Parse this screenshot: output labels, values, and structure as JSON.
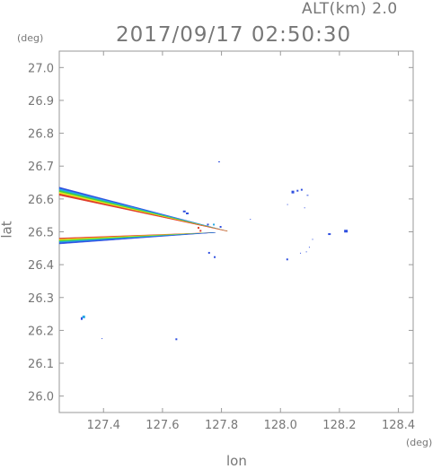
{
  "header": {
    "alt_label": "ALT(km)  2.0",
    "timestamp": "2017/09/17  02:50:30"
  },
  "axes": {
    "y_unit": "(deg)",
    "x_unit": "(deg)",
    "y_label": "lat",
    "x_label": "lon"
  },
  "chart_data": {
    "type": "scatter",
    "title": "2017/09/17  02:50:30",
    "subtitle": "ALT(km)  2.0",
    "xlabel": "lon",
    "ylabel": "lat",
    "xlim": [
      127.25,
      128.45
    ],
    "ylim": [
      25.95,
      27.05
    ],
    "xticks": [
      127.4,
      127.6,
      127.8,
      128.0,
      128.2,
      128.4
    ],
    "xtick_labels": [
      "127.4",
      "127.6",
      "127.8",
      "128.0",
      "128.2",
      "128.4"
    ],
    "yticks": [
      26.0,
      26.1,
      26.2,
      26.3,
      26.4,
      26.5,
      26.6,
      26.7,
      26.8,
      26.9,
      27.0
    ],
    "ytick_labels": [
      "26.0",
      "26.1",
      "26.2",
      "26.3",
      "26.4",
      "26.5",
      "26.6",
      "26.7",
      "26.8",
      "26.9",
      "27.0"
    ],
    "grid": false,
    "colors": {
      "blue": "#2f4fe0",
      "cyan": "#23a8e6",
      "green": "#3fd23f",
      "yellow": "#e6e61f",
      "red": "#e03b2a"
    },
    "upper_beam": {
      "apex": [
        127.82,
        26.502
      ],
      "top_edge_start": [
        127.25,
        26.636
      ],
      "bottom_edge_start": [
        127.25,
        26.611
      ],
      "bands": [
        "blue",
        "cyan",
        "green",
        "yellow",
        "red"
      ]
    },
    "lower_beam": {
      "apex": [
        127.78,
        26.498
      ],
      "top_edge_start": [
        127.25,
        26.481
      ],
      "bottom_edge_start": [
        127.25,
        26.463
      ],
      "bands": [
        "red",
        "yellow",
        "green",
        "cyan",
        "blue"
      ]
    },
    "echoes": [
      {
        "lon": 127.333,
        "lat": 26.241,
        "color": "cyan",
        "w": 3,
        "h": 3
      },
      {
        "lon": 127.326,
        "lat": 26.236,
        "color": "blue",
        "w": 2,
        "h": 3
      },
      {
        "lon": 127.395,
        "lat": 26.175,
        "color": "blue",
        "w": 1,
        "h": 1
      },
      {
        "lon": 127.647,
        "lat": 26.173,
        "color": "blue",
        "w": 2,
        "h": 2
      },
      {
        "lon": 127.674,
        "lat": 26.562,
        "color": "blue",
        "w": 3,
        "h": 2
      },
      {
        "lon": 127.684,
        "lat": 26.556,
        "color": "blue",
        "w": 3,
        "h": 2
      },
      {
        "lon": 127.722,
        "lat": 26.512,
        "color": "red",
        "w": 2,
        "h": 2
      },
      {
        "lon": 127.729,
        "lat": 26.503,
        "color": "red",
        "w": 2,
        "h": 2
      },
      {
        "lon": 127.754,
        "lat": 26.522,
        "color": "blue",
        "w": 2,
        "h": 2
      },
      {
        "lon": 127.774,
        "lat": 26.522,
        "color": "cyan",
        "w": 2,
        "h": 2
      },
      {
        "lon": 127.797,
        "lat": 26.515,
        "color": "blue",
        "w": 2,
        "h": 2
      },
      {
        "lon": 127.758,
        "lat": 26.436,
        "color": "blue",
        "w": 2,
        "h": 2
      },
      {
        "lon": 127.777,
        "lat": 26.423,
        "color": "blue",
        "w": 2,
        "h": 2
      },
      {
        "lon": 127.792,
        "lat": 26.713,
        "color": "blue",
        "w": 2,
        "h": 1
      },
      {
        "lon": 127.898,
        "lat": 26.538,
        "color": "blue",
        "w": 1,
        "h": 1
      },
      {
        "lon": 128.042,
        "lat": 26.621,
        "color": "blue",
        "w": 3,
        "h": 3
      },
      {
        "lon": 128.058,
        "lat": 26.625,
        "color": "blue",
        "w": 2,
        "h": 2
      },
      {
        "lon": 128.072,
        "lat": 26.628,
        "color": "blue",
        "w": 2,
        "h": 2
      },
      {
        "lon": 128.092,
        "lat": 26.611,
        "color": "blue",
        "w": 2,
        "h": 1
      },
      {
        "lon": 128.024,
        "lat": 26.583,
        "color": "blue",
        "w": 1,
        "h": 1
      },
      {
        "lon": 128.082,
        "lat": 26.573,
        "color": "blue",
        "w": 1,
        "h": 1
      },
      {
        "lon": 128.222,
        "lat": 26.502,
        "color": "blue",
        "w": 4,
        "h": 3
      },
      {
        "lon": 128.166,
        "lat": 26.493,
        "color": "blue",
        "w": 3,
        "h": 2
      },
      {
        "lon": 128.109,
        "lat": 26.477,
        "color": "blue",
        "w": 1,
        "h": 1
      },
      {
        "lon": 128.098,
        "lat": 26.453,
        "color": "blue",
        "w": 1,
        "h": 1
      },
      {
        "lon": 128.068,
        "lat": 26.435,
        "color": "blue",
        "w": 1,
        "h": 1
      },
      {
        "lon": 128.088,
        "lat": 26.439,
        "color": "blue",
        "w": 1,
        "h": 1
      },
      {
        "lon": 128.023,
        "lat": 26.416,
        "color": "blue",
        "w": 2,
        "h": 2
      }
    ]
  }
}
